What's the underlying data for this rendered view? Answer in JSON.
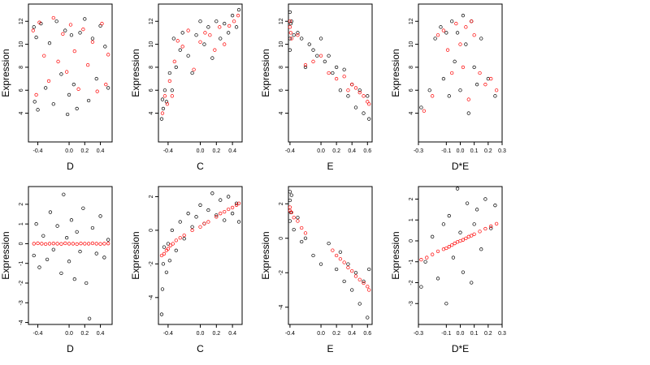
{
  "chart_data": [
    {
      "type": "scatter",
      "xlabel": "D",
      "ylabel": "Expression",
      "xlim": [
        -0.52,
        0.55
      ],
      "ylim": [
        1.5,
        13.5
      ],
      "xticks": [
        "-0.4",
        "0.0",
        "0.2",
        "0.4"
      ],
      "xtick_values": [
        -0.4,
        0.0,
        0.2,
        0.4
      ],
      "yticks": [
        "4",
        "6",
        "8",
        "10",
        "12"
      ],
      "ytick_values": [
        4,
        6,
        8,
        10,
        12
      ],
      "grid": false,
      "series": [
        {
          "color": "#000000",
          "x": [
            -0.45,
            -0.44,
            -0.42,
            -0.4,
            -0.36,
            -0.3,
            -0.25,
            -0.2,
            -0.16,
            -0.1,
            -0.05,
            -0.02,
            0.0,
            0.03,
            0.06,
            0.1,
            0.14,
            0.2,
            0.25,
            0.3,
            0.35,
            0.4,
            0.46,
            0.5
          ],
          "y": [
            11.5,
            5.0,
            10.6,
            4.3,
            11.8,
            6.2,
            10.1,
            4.8,
            12.0,
            7.4,
            11.2,
            3.9,
            5.6,
            10.8,
            6.5,
            4.4,
            11.0,
            12.2,
            5.1,
            10.5,
            7.0,
            11.6,
            9.8,
            6.2
          ]
        },
        {
          "color": "#ff0000",
          "x": [
            -0.46,
            -0.42,
            -0.38,
            -0.32,
            -0.26,
            -0.2,
            -0.14,
            -0.08,
            -0.03,
            0.02,
            0.07,
            0.12,
            0.18,
            0.24,
            0.3,
            0.36,
            0.42,
            0.47,
            0.5
          ],
          "y": [
            11.2,
            5.6,
            11.9,
            9.0,
            6.8,
            12.3,
            8.5,
            10.9,
            7.6,
            11.7,
            9.4,
            6.1,
            11.3,
            8.2,
            10.2,
            5.9,
            11.8,
            6.5,
            9.1
          ]
        }
      ]
    },
    {
      "type": "scatter",
      "xlabel": "C",
      "ylabel": "Expression",
      "xlim": [
        -0.52,
        0.52
      ],
      "ylim": [
        1.5,
        13.5
      ],
      "xticks": [
        "-0.4",
        "0.0",
        "0.2",
        "0.4"
      ],
      "xtick_values": [
        -0.4,
        0.0,
        0.2,
        0.4
      ],
      "yticks": [
        "4",
        "6",
        "8",
        "10",
        "12"
      ],
      "ytick_values": [
        4,
        6,
        8,
        10,
        12
      ],
      "grid": false,
      "series": [
        {
          "color": "#000000",
          "x": [
            -0.48,
            -0.47,
            -0.46,
            -0.44,
            -0.42,
            -0.38,
            -0.35,
            -0.33,
            -0.3,
            -0.25,
            -0.22,
            -0.15,
            -0.1,
            -0.05,
            0.0,
            0.05,
            0.1,
            0.15,
            0.2,
            0.25,
            0.3,
            0.35,
            0.4,
            0.45,
            0.48
          ],
          "y": [
            3.5,
            5.2,
            4.4,
            6.0,
            5.0,
            7.5,
            6.0,
            10.5,
            8.0,
            9.5,
            11.0,
            9.0,
            7.5,
            10.8,
            12.0,
            10.0,
            11.5,
            8.8,
            12.0,
            10.5,
            11.8,
            11.0,
            12.5,
            11.5,
            13.0
          ]
        },
        {
          "color": "#ff0000",
          "x": [
            -0.47,
            -0.44,
            -0.41,
            -0.38,
            -0.35,
            -0.32,
            -0.28,
            -0.22,
            -0.15,
            -0.08,
            0.0,
            0.06,
            0.12,
            0.18,
            0.24,
            0.3,
            0.36,
            0.42,
            0.47
          ],
          "y": [
            4.0,
            5.5,
            4.8,
            6.8,
            5.5,
            8.5,
            10.3,
            9.8,
            11.2,
            7.8,
            10.2,
            11.0,
            10.8,
            9.5,
            11.5,
            10.0,
            11.6,
            12.0,
            12.5
          ]
        }
      ]
    },
    {
      "type": "scatter",
      "xlabel": "E",
      "ylabel": "Expression",
      "xlim": [
        -0.42,
        0.66
      ],
      "ylim": [
        1.5,
        13.5
      ],
      "xticks": [
        "-0.4",
        "0.0",
        "0.2",
        "0.4",
        "0.6"
      ],
      "xtick_values": [
        -0.4,
        0.0,
        0.2,
        0.4,
        0.6
      ],
      "yticks": [
        "4",
        "6",
        "8",
        "10",
        "12"
      ],
      "ytick_values": [
        4,
        6,
        8,
        10,
        12
      ],
      "grid": false,
      "series": [
        {
          "color": "#000000",
          "x": [
            -0.4,
            -0.4,
            -0.4,
            -0.39,
            -0.38,
            -0.35,
            -0.3,
            -0.25,
            -0.2,
            -0.15,
            -0.1,
            -0.05,
            0.0,
            0.05,
            0.1,
            0.15,
            0.2,
            0.25,
            0.3,
            0.35,
            0.4,
            0.45,
            0.5,
            0.55,
            0.6,
            0.62
          ],
          "y": [
            12.8,
            10.5,
            9.5,
            11.8,
            12.0,
            10.8,
            11.0,
            10.5,
            8.0,
            10.0,
            9.5,
            9.0,
            10.5,
            8.5,
            9.0,
            7.5,
            8.0,
            6.0,
            7.8,
            5.5,
            6.5,
            4.5,
            6.0,
            4.0,
            5.5,
            3.5
          ]
        },
        {
          "color": "#ff0000",
          "x": [
            -0.4,
            -0.4,
            -0.39,
            -0.38,
            -0.3,
            -0.2,
            -0.1,
            0.0,
            0.1,
            0.2,
            0.3,
            0.35,
            0.4,
            0.45,
            0.5,
            0.55,
            0.6,
            0.62
          ],
          "y": [
            12.0,
            11.5,
            11.0,
            10.5,
            10.8,
            8.2,
            8.5,
            9.0,
            7.5,
            7.0,
            7.2,
            6.0,
            6.5,
            6.2,
            5.8,
            5.5,
            5.0,
            4.8
          ]
        }
      ]
    },
    {
      "type": "scatter",
      "xlabel": "D*E",
      "ylabel": "Expression",
      "xlim": [
        -0.3,
        0.3
      ],
      "ylim": [
        1.5,
        13.5
      ],
      "xticks": [
        "-0.3",
        "-0.1",
        "0.0",
        "0.1",
        "0.2",
        "0.3"
      ],
      "xtick_values": [
        -0.3,
        -0.1,
        0.0,
        0.1,
        0.2,
        0.3
      ],
      "yticks": [
        "4",
        "6",
        "8",
        "10",
        "12"
      ],
      "ytick_values": [
        4,
        6,
        8,
        10,
        12
      ],
      "grid": false,
      "series": [
        {
          "color": "#000000",
          "x": [
            -0.28,
            -0.22,
            -0.18,
            -0.14,
            -0.12,
            -0.1,
            -0.08,
            -0.06,
            -0.04,
            -0.02,
            0.0,
            0.02,
            0.04,
            0.06,
            0.08,
            0.1,
            0.12,
            0.15,
            0.2,
            0.25
          ],
          "y": [
            4.5,
            6.0,
            10.5,
            11.5,
            7.0,
            11.0,
            5.5,
            12.0,
            8.5,
            11.0,
            6.0,
            12.5,
            10.0,
            4.0,
            12.0,
            8.0,
            6.5,
            10.5,
            7.0,
            5.5
          ]
        },
        {
          "color": "#ff0000",
          "x": [
            -0.26,
            -0.2,
            -0.16,
            -0.12,
            -0.09,
            -0.06,
            -0.03,
            0.0,
            0.02,
            0.04,
            0.06,
            0.08,
            0.1,
            0.14,
            0.18,
            0.22,
            0.26
          ],
          "y": [
            4.2,
            5.5,
            10.8,
            11.2,
            9.5,
            7.5,
            11.8,
            10.0,
            8.0,
            11.5,
            5.2,
            12.0,
            10.8,
            7.5,
            6.5,
            7.0,
            6.0
          ]
        }
      ]
    },
    {
      "type": "scatter",
      "xlabel": "D",
      "ylabel": "Expression",
      "xlim": [
        -0.52,
        0.55
      ],
      "ylim": [
        -4.1,
        2.9
      ],
      "xticks": [
        "-0.4",
        "0.0",
        "0.2",
        "0.4"
      ],
      "xtick_values": [
        -0.4,
        0.0,
        0.2,
        0.4
      ],
      "yticks": [
        "-4",
        "-3",
        "-2",
        "-1",
        "0",
        "1",
        "2"
      ],
      "ytick_values": [
        -4,
        -3,
        -2,
        -1,
        0,
        1,
        2
      ],
      "grid": false,
      "series": [
        {
          "color": "#000000",
          "x": [
            -0.45,
            -0.42,
            -0.38,
            -0.33,
            -0.28,
            -0.24,
            -0.2,
            -0.15,
            -0.1,
            -0.07,
            -0.03,
            0.0,
            0.03,
            0.07,
            0.1,
            0.14,
            0.18,
            0.22,
            0.26,
            0.3,
            0.35,
            0.4,
            0.45,
            0.5
          ],
          "y": [
            -0.6,
            1.0,
            -1.2,
            0.4,
            -0.8,
            1.6,
            -0.3,
            0.9,
            -1.5,
            2.5,
            0.3,
            -0.9,
            1.2,
            -1.8,
            0.6,
            -0.4,
            1.8,
            -2.0,
            -3.8,
            0.8,
            -0.5,
            1.4,
            -0.7,
            0.2
          ]
        },
        {
          "color": "#ff0000",
          "x": [
            -0.45,
            -0.4,
            -0.35,
            -0.3,
            -0.25,
            -0.2,
            -0.15,
            -0.1,
            -0.05,
            0.0,
            0.05,
            0.1,
            0.15,
            0.2,
            0.25,
            0.3,
            0.35,
            0.4,
            0.45,
            0.5
          ],
          "y": [
            0.0,
            0.02,
            0.0,
            -0.02,
            0.0,
            0.01,
            0.0,
            -0.01,
            0.02,
            0.0,
            0.0,
            -0.02,
            0.01,
            0.0,
            0.0,
            0.02,
            0.0,
            -0.01,
            0.0,
            0.01
          ]
        }
      ]
    },
    {
      "type": "scatter",
      "xlabel": "C",
      "ylabel": "Expression",
      "xlim": [
        -0.52,
        0.52
      ],
      "ylim": [
        -5.6,
        2.6
      ],
      "xticks": [
        "-0.4",
        "0.0",
        "0.2",
        "0.4"
      ],
      "xtick_values": [
        -0.4,
        0.0,
        0.2,
        0.4
      ],
      "yticks": [
        "-4",
        "-2",
        "0",
        "2"
      ],
      "ytick_values": [
        -4,
        -2,
        0,
        2
      ],
      "grid": false,
      "series": [
        {
          "color": "#000000",
          "x": [
            -0.48,
            -0.47,
            -0.46,
            -0.45,
            -0.42,
            -0.4,
            -0.38,
            -0.35,
            -0.3,
            -0.25,
            -0.2,
            -0.15,
            -0.1,
            -0.05,
            0.0,
            0.05,
            0.1,
            0.15,
            0.2,
            0.25,
            0.3,
            0.35,
            0.4,
            0.45,
            0.48
          ],
          "y": [
            -5.0,
            -3.5,
            -2.0,
            -1.0,
            -2.5,
            -0.8,
            -1.8,
            0.0,
            -1.2,
            0.5,
            -0.5,
            1.0,
            0.2,
            0.8,
            1.5,
            0.4,
            1.2,
            2.2,
            0.9,
            1.8,
            0.6,
            2.0,
            1.0,
            1.6,
            0.5
          ]
        },
        {
          "color": "#ff0000",
          "x": [
            -0.48,
            -0.45,
            -0.42,
            -0.4,
            -0.37,
            -0.34,
            -0.3,
            -0.25,
            -0.2,
            -0.1,
            0.0,
            0.05,
            0.1,
            0.2,
            0.25,
            0.3,
            0.35,
            0.4,
            0.45,
            0.48
          ],
          "y": [
            -1.5,
            -1.4,
            -1.2,
            -1.1,
            -0.9,
            -0.8,
            -0.6,
            -0.45,
            -0.3,
            0.0,
            0.2,
            0.4,
            0.5,
            0.8,
            1.0,
            1.1,
            1.25,
            1.35,
            1.5,
            1.6
          ]
        }
      ]
    },
    {
      "type": "scatter",
      "xlabel": "E",
      "ylabel": "Expression",
      "xlim": [
        -0.42,
        0.66
      ],
      "ylim": [
        -5.0,
        3.0
      ],
      "xticks": [
        "-0.4",
        "0.0",
        "0.2",
        "0.4",
        "0.6"
      ],
      "xtick_values": [
        -0.4,
        0.0,
        0.2,
        0.4,
        0.6
      ],
      "yticks": [
        "-4",
        "-2",
        "0",
        "2"
      ],
      "ytick_values": [
        -4,
        -2,
        0,
        2
      ],
      "grid": false,
      "series": [
        {
          "color": "#000000",
          "x": [
            -0.4,
            -0.4,
            -0.4,
            -0.39,
            -0.38,
            -0.35,
            -0.3,
            -0.25,
            -0.2,
            -0.1,
            0.0,
            0.1,
            0.2,
            0.25,
            0.3,
            0.35,
            0.4,
            0.45,
            0.5,
            0.55,
            0.6,
            0.62
          ],
          "y": [
            2.7,
            1.0,
            2.2,
            1.5,
            2.5,
            0.5,
            1.2,
            -0.2,
            0.0,
            -1.0,
            -1.5,
            -0.3,
            -1.8,
            -0.8,
            -2.5,
            -1.5,
            -3.0,
            -2.0,
            -3.8,
            -2.5,
            -4.6,
            -1.8
          ]
        },
        {
          "color": "#ff0000",
          "x": [
            -0.4,
            -0.4,
            -0.38,
            -0.35,
            -0.3,
            -0.25,
            -0.2,
            0.15,
            0.2,
            0.25,
            0.3,
            0.35,
            0.4,
            0.45,
            0.5,
            0.55,
            0.6,
            0.62
          ],
          "y": [
            1.8,
            1.6,
            1.5,
            1.2,
            1.0,
            0.6,
            0.3,
            -0.7,
            -1.0,
            -1.2,
            -1.4,
            -1.7,
            -1.9,
            -2.2,
            -2.4,
            -2.6,
            -2.8,
            -3.0
          ]
        }
      ]
    },
    {
      "type": "scatter",
      "xlabel": "D*E",
      "ylabel": "Expression",
      "xlim": [
        -0.3,
        0.3
      ],
      "ylim": [
        -4.0,
        2.6
      ],
      "xticks": [
        "-0.3",
        "-0.1",
        "0.0",
        "0.1",
        "0.2",
        "0.3"
      ],
      "xtick_values": [
        -0.3,
        -0.1,
        0.0,
        0.1,
        0.2,
        0.3
      ],
      "yticks": [
        "-3",
        "-2",
        "-1",
        "0",
        "1",
        "2"
      ],
      "ytick_values": [
        -3,
        -2,
        -1,
        0,
        1,
        2
      ],
      "grid": false,
      "series": [
        {
          "color": "#000000",
          "x": [
            -0.28,
            -0.25,
            -0.2,
            -0.16,
            -0.12,
            -0.1,
            -0.08,
            -0.05,
            -0.02,
            0.0,
            0.02,
            0.05,
            0.08,
            0.1,
            0.12,
            0.15,
            0.18,
            0.22,
            0.25
          ],
          "y": [
            -2.2,
            -1.0,
            0.2,
            -1.8,
            0.8,
            -3.0,
            1.2,
            -0.8,
            2.5,
            0.4,
            -1.5,
            1.8,
            -2.0,
            0.8,
            1.5,
            -0.4,
            2.0,
            0.6,
            1.7
          ]
        },
        {
          "color": "#ff0000",
          "x": [
            -0.28,
            -0.24,
            -0.2,
            -0.16,
            -0.12,
            -0.1,
            -0.08,
            -0.06,
            -0.04,
            -0.02,
            0.0,
            0.02,
            0.04,
            0.06,
            0.08,
            0.1,
            0.14,
            0.18,
            0.22,
            0.26
          ],
          "y": [
            -0.9,
            -0.8,
            -0.65,
            -0.5,
            -0.4,
            -0.35,
            -0.28,
            -0.2,
            -0.12,
            -0.05,
            0.0,
            0.05,
            0.12,
            0.2,
            0.25,
            0.32,
            0.45,
            0.58,
            0.7,
            0.82
          ]
        }
      ]
    }
  ]
}
